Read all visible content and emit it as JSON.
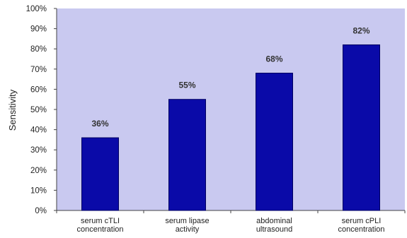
{
  "chart_data": {
    "type": "bar",
    "ylabel": "Sensitivity",
    "xlabel": "",
    "ylim": [
      0,
      100
    ],
    "yticks": [
      "0%",
      "10%",
      "20%",
      "30%",
      "40%",
      "50%",
      "60%",
      "70%",
      "80%",
      "90%",
      "100%"
    ],
    "categories": [
      [
        "serum cTLI",
        "concentration"
      ],
      [
        "serum lipase",
        "activity"
      ],
      [
        "abdominal",
        "ultrasound"
      ],
      [
        "serum cPLI",
        "concentration"
      ]
    ],
    "values": [
      36,
      55,
      68,
      82
    ],
    "data_labels": [
      "36%",
      "55%",
      "68%",
      "82%"
    ],
    "colors": {
      "plot_background": "#c9c9f0",
      "bar_fill": "#0a0aa8",
      "bar_stroke": "#000060"
    },
    "grid": false
  }
}
